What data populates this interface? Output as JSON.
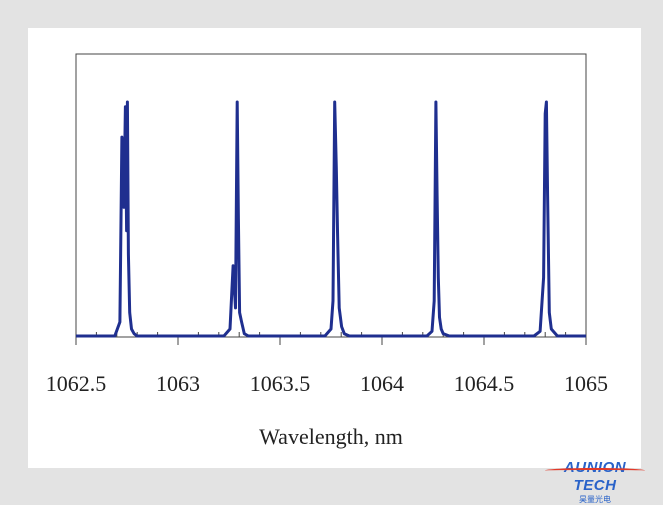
{
  "chart_data": {
    "type": "line",
    "xlabel": "Wavelength, nm",
    "ylabel": "",
    "xlim": [
      1062.5,
      1065
    ],
    "ylim": [
      0,
      1
    ],
    "x_ticks": [
      "1062.5",
      "1063",
      "1063.5",
      "1064",
      "1064.5",
      "1065"
    ],
    "grid": false,
    "line_color": "#1f2f8f",
    "series": [
      {
        "x": [
          1062.5,
          1062.69,
          1062.715,
          1062.725,
          1062.735,
          1062.742,
          1062.748,
          1062.752,
          1062.757,
          1062.763,
          1062.772,
          1062.785,
          1062.8,
          1063.225,
          1063.255,
          1063.27,
          1063.282,
          1063.29,
          1063.296,
          1063.302,
          1063.312,
          1063.325,
          1063.345,
          1063.72,
          1063.75,
          1063.76,
          1063.768,
          1063.776,
          1063.782,
          1063.79,
          1063.802,
          1063.815,
          1063.84,
          1064.22,
          1064.245,
          1064.256,
          1064.264,
          1064.27,
          1064.276,
          1064.282,
          1064.29,
          1064.3,
          1064.33,
          1064.745,
          1064.775,
          1064.792,
          1064.8,
          1064.806,
          1064.812,
          1064.82,
          1064.83,
          1064.86,
          1065
        ],
        "y": [
          0,
          0,
          0.06,
          0.85,
          0.55,
          0.98,
          0.45,
          1.0,
          0.35,
          0.1,
          0.03,
          0.01,
          0,
          0,
          0.03,
          0.3,
          0.12,
          1.0,
          0.5,
          0.1,
          0.06,
          0.01,
          0,
          0,
          0.03,
          0.15,
          1.0,
          0.72,
          0.45,
          0.12,
          0.04,
          0.01,
          0,
          0,
          0.02,
          0.15,
          1.0,
          0.6,
          0.25,
          0.08,
          0.03,
          0.01,
          0,
          0,
          0.02,
          0.25,
          0.95,
          1.0,
          0.6,
          0.1,
          0.03,
          0,
          0
        ]
      }
    ]
  },
  "logo": {
    "brand": "AUNION TECH",
    "sub": "昊量光电"
  }
}
